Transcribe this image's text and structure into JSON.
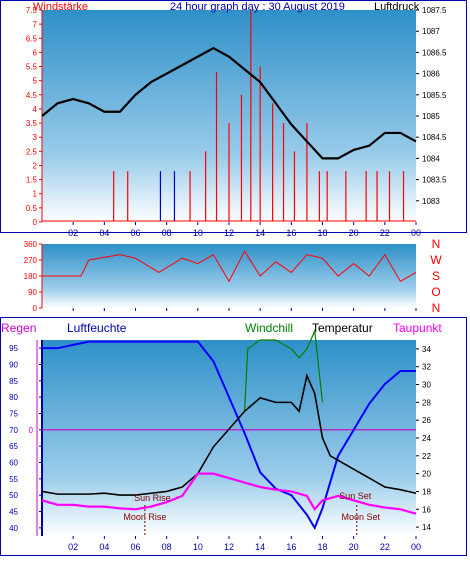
{
  "title": "24 hour graph day : 30 August 2019",
  "labels": {
    "wind": "Windstärke",
    "pressure": "Luftdruck",
    "rain": "Regen",
    "humidity": "Luftfeuchte",
    "windchill": "Windchill",
    "temperature": "Temperatur",
    "dewpoint": "Taupunkt",
    "sunrise": "Sun Rise",
    "sunset": "Sun Set",
    "moonrise": "Moon Rise",
    "moonset": "Moon Set"
  },
  "colors": {
    "wind": "#ff0000",
    "gust": "#0000cc",
    "pressure": "#000000",
    "direction": "#ff0000",
    "humidity": "#0000ff",
    "temperature": "#000000",
    "dewpoint": "#ff00ff",
    "windchill": "#008000",
    "rain": "#cc00cc",
    "frame": "#0000aa"
  },
  "chart_data": [
    {
      "type": "line",
      "title": "24 hour graph day : 30 August 2019",
      "ylabel": "Windstärke",
      "y2label": "Luftdruck",
      "x_ticks": [
        "02",
        "04",
        "06",
        "08",
        "10",
        "12",
        "14",
        "16",
        "18",
        "20",
        "22",
        "00"
      ],
      "ylim": [
        0,
        7.5
      ],
      "y_ticks": [
        "0",
        "0.5",
        "1",
        "1.5",
        "2",
        "2.5",
        "3",
        "3.5",
        "4",
        "4.5",
        "5",
        "5.5",
        "6",
        "6.5",
        "7",
        "7.5"
      ],
      "y2lim": [
        1082.5,
        1087.5
      ],
      "y2_ticks": [
        "1083",
        "1083.5",
        "1084",
        "1084.5",
        "1085",
        "1085.5",
        "1086",
        "1086.5",
        "1087",
        "1087.5"
      ],
      "series": [
        {
          "name": "Luftdruck",
          "axis": "right",
          "x": [
            0,
            1,
            2,
            3,
            4,
            5,
            6,
            7,
            8,
            9,
            10,
            11,
            12,
            13,
            14,
            15,
            16,
            17,
            18,
            19,
            20,
            21,
            22,
            23,
            24
          ],
          "values": [
            1085.0,
            1085.3,
            1085.4,
            1085.3,
            1085.1,
            1085.1,
            1085.5,
            1085.8,
            1086.0,
            1086.2,
            1086.4,
            1086.6,
            1086.4,
            1086.1,
            1085.8,
            1085.3,
            1084.8,
            1084.4,
            1084.0,
            1084.0,
            1084.2,
            1084.3,
            1084.6,
            1084.6,
            1084.4
          ]
        },
        {
          "name": "Windstärke",
          "axis": "left",
          "x": [
            4.6,
            5.5,
            7.6,
            8.5,
            9.5,
            10.5,
            11.2,
            12.0,
            12.8,
            13.4,
            14.0,
            14.8,
            15.5,
            16.2,
            17.0,
            17.8,
            18.3,
            19.5,
            20.8,
            21.5,
            22.3,
            23.2
          ],
          "values": [
            1.8,
            1.8,
            1.8,
            1.8,
            1.8,
            2.5,
            5.3,
            3.5,
            4.5,
            7.5,
            5.5,
            4.2,
            3.5,
            2.5,
            3.5,
            1.8,
            1.8,
            1.8,
            1.8,
            1.8,
            1.8,
            1.8
          ]
        }
      ]
    },
    {
      "type": "line",
      "ylim": [
        0,
        360
      ],
      "y_ticks": [
        "0",
        "90",
        "180",
        "270",
        "360"
      ],
      "y2_ticks": [
        "N",
        "W",
        "S",
        "O",
        "N"
      ],
      "series": [
        {
          "name": "direction",
          "x": [
            0,
            2.5,
            3,
            5,
            6,
            7.5,
            9,
            10,
            11,
            12,
            13,
            14,
            15,
            16,
            17,
            18,
            19,
            20,
            21,
            22,
            23,
            24
          ],
          "values": [
            180,
            180,
            270,
            300,
            280,
            200,
            280,
            250,
            300,
            150,
            320,
            180,
            260,
            200,
            300,
            280,
            180,
            250,
            180,
            300,
            150,
            200
          ]
        }
      ]
    },
    {
      "type": "line",
      "ylabel": "Luftfeuchte",
      "y2label": "Temperatur",
      "ylim": [
        37.5,
        97.5
      ],
      "y_ticks": [
        "40",
        "45",
        "50",
        "55",
        "60",
        "65",
        "70",
        "75",
        "80",
        "85",
        "90",
        "95"
      ],
      "y2lim": [
        13,
        35
      ],
      "y2_ticks": [
        "14",
        "16",
        "18",
        "20",
        "22",
        "24",
        "26",
        "28",
        "30",
        "32",
        "34"
      ],
      "rain_axis_label": "0",
      "series": [
        {
          "name": "Luftfeuchte",
          "axis": "left",
          "x": [
            0,
            1,
            2,
            3,
            4,
            5,
            6,
            7,
            8,
            9,
            10,
            11,
            12,
            13,
            14,
            15,
            16,
            17,
            17.5,
            18,
            19,
            20,
            21,
            22,
            23,
            24
          ],
          "values": [
            95,
            95,
            96,
            97,
            97,
            97,
            97,
            97,
            97,
            97,
            97,
            91,
            80,
            69,
            57,
            52,
            50,
            44,
            40,
            46,
            62,
            70,
            78,
            84,
            88,
            88
          ]
        },
        {
          "name": "Temperatur",
          "axis": "right",
          "x": [
            0,
            1,
            2,
            3,
            4,
            5,
            6,
            7,
            8,
            9,
            10,
            11,
            12,
            13,
            14,
            15,
            16,
            16.5,
            17,
            17.5,
            18,
            18.5,
            19,
            20,
            21,
            22,
            23,
            24
          ],
          "values": [
            18,
            17.7,
            17.7,
            17.7,
            17.8,
            17.6,
            17.6,
            17.8,
            18,
            18.5,
            20,
            23,
            25,
            27,
            28.5,
            28,
            28,
            27,
            31,
            29,
            24,
            22,
            21.5,
            20.5,
            19.5,
            18.5,
            18.2,
            17.8
          ]
        },
        {
          "name": "Taupunkt",
          "axis": "right",
          "x": [
            0,
            1,
            2,
            3,
            4,
            5,
            6,
            7,
            8,
            9,
            10,
            11,
            12,
            13,
            14,
            15,
            16,
            17,
            17.5,
            18,
            19,
            20,
            21,
            22,
            23,
            24
          ],
          "values": [
            17,
            16.5,
            16.5,
            16.3,
            16.3,
            16.1,
            16,
            16.3,
            16.8,
            17.5,
            20,
            20,
            19.5,
            19,
            18.5,
            18.2,
            18,
            17.5,
            16,
            17,
            17.5,
            17,
            16.5,
            16.2,
            16,
            15.5
          ]
        },
        {
          "name": "Windchill",
          "axis": "right",
          "x": [
            13,
            13.2,
            14,
            15,
            16,
            16.5,
            17,
            17.5,
            18
          ],
          "values": [
            27,
            34,
            35,
            35,
            34,
            33,
            34,
            36,
            28
          ]
        }
      ],
      "events": {
        "sunrise_hour": 6.7,
        "sunset_hour": 20.1,
        "moonrise_hour": 6.6,
        "moonset_hour": 20.2
      }
    }
  ]
}
